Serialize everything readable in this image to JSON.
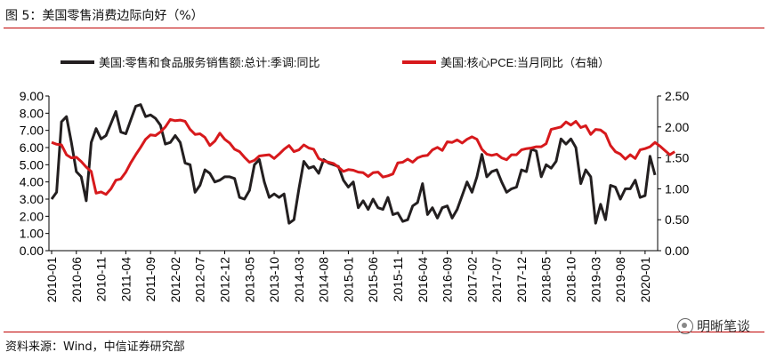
{
  "figure": {
    "title": "图 5：美国零售消费边际向好（%）",
    "source": "资料来源：Wind，中信证券研究部",
    "watermark": "明晰笔谈",
    "watermark_icon": "wechat-icon"
  },
  "chart_data": {
    "type": "line",
    "title": "",
    "xlabel": "",
    "ylabel": "",
    "y_left": {
      "min": 0,
      "max": 9,
      "ticks": [
        "0.00",
        "1.00",
        "2.00",
        "3.00",
        "4.00",
        "5.00",
        "6.00",
        "7.00",
        "8.00",
        "9.00"
      ]
    },
    "y_right": {
      "min": 0,
      "max": 2.5,
      "ticks": [
        "0.00",
        "0.50",
        "1.00",
        "1.50",
        "2.00",
        "2.50"
      ]
    },
    "x_ticks": [
      "2010-01",
      "2010-06",
      "2010-11",
      "2011-04",
      "2011-09",
      "2012-02",
      "2012-07",
      "2012-12",
      "2013-05",
      "2013-10",
      "2014-03",
      "2014-08",
      "2015-01",
      "2015-06",
      "2015-11",
      "2016-04",
      "2016-09",
      "2017-02",
      "2017-07",
      "2017-12",
      "2018-05",
      "2018-10",
      "2019-03",
      "2019-08",
      "2020-01"
    ],
    "legend_position": "top",
    "grid": false,
    "colors": {
      "retail": "#231f20",
      "pce": "#d7191c"
    },
    "series": [
      {
        "name": "美国:零售和食品服务销售额:总计:季调:同比",
        "axis": "left",
        "start": "2010-01",
        "values": [
          3.0,
          3.4,
          7.5,
          7.8,
          6.3,
          4.6,
          4.3,
          2.9,
          6.3,
          7.1,
          6.5,
          6.7,
          7.4,
          8.1,
          6.9,
          6.8,
          7.6,
          8.4,
          8.5,
          7.8,
          7.9,
          7.7,
          7.3,
          6.2,
          6.3,
          6.7,
          6.3,
          5.1,
          5.0,
          3.4,
          3.8,
          4.7,
          4.5,
          4.0,
          4.1,
          4.3,
          4.3,
          4.2,
          3.1,
          3.0,
          3.5,
          5.0,
          5.3,
          4.0,
          3.1,
          3.3,
          3.1,
          3.3,
          1.6,
          1.8,
          3.6,
          5.2,
          4.8,
          4.9,
          4.5,
          5.3,
          5.1,
          5.0,
          4.9,
          4.1,
          3.7,
          4.0,
          2.5,
          2.9,
          2.4,
          3.0,
          2.5,
          2.4,
          3.1,
          2.1,
          2.2,
          1.7,
          1.8,
          2.6,
          2.8,
          3.9,
          2.1,
          2.5,
          1.9,
          2.5,
          2.6,
          1.9,
          2.4,
          3.2,
          4.0,
          3.4,
          4.3,
          5.6,
          4.3,
          4.6,
          4.7,
          4.0,
          3.4,
          3.6,
          3.7,
          4.7,
          4.6,
          5.9,
          5.8,
          4.3,
          5.0,
          4.8,
          5.2,
          6.5,
          6.2,
          6.5,
          6.0,
          3.9,
          4.7,
          4.3,
          1.6,
          2.7,
          1.8,
          3.8,
          3.7,
          3.0,
          3.6,
          3.6,
          4.1,
          3.1,
          3.2,
          5.5,
          4.4
        ]
      },
      {
        "name": "美国:核心PCE:当月同比（右轴）",
        "axis": "right",
        "start": "2010-01",
        "values": [
          1.75,
          1.72,
          1.71,
          1.55,
          1.5,
          1.51,
          1.44,
          1.35,
          1.28,
          0.93,
          0.95,
          0.91,
          1.0,
          1.14,
          1.16,
          1.27,
          1.42,
          1.55,
          1.67,
          1.8,
          1.87,
          1.86,
          1.92,
          2.0,
          2.12,
          2.1,
          2.11,
          2.09,
          1.96,
          1.88,
          1.89,
          1.83,
          1.7,
          1.77,
          1.9,
          1.8,
          1.74,
          1.64,
          1.6,
          1.51,
          1.43,
          1.46,
          1.53,
          1.54,
          1.55,
          1.49,
          1.56,
          1.64,
          1.7,
          1.6,
          1.63,
          1.71,
          1.66,
          1.64,
          1.49,
          1.45,
          1.43,
          1.41,
          1.35,
          1.28,
          1.31,
          1.3,
          1.27,
          1.26,
          1.2,
          1.26,
          1.27,
          1.19,
          1.21,
          1.24,
          1.42,
          1.43,
          1.48,
          1.43,
          1.5,
          1.53,
          1.54,
          1.63,
          1.67,
          1.62,
          1.76,
          1.75,
          1.79,
          1.74,
          1.8,
          1.84,
          1.8,
          1.64,
          1.56,
          1.54,
          1.56,
          1.5,
          1.47,
          1.55,
          1.55,
          1.63,
          1.65,
          1.66,
          1.68,
          1.68,
          1.73,
          1.96,
          1.98,
          2.0,
          2.08,
          2.03,
          2.09,
          1.99,
          2.02,
          1.88,
          1.96,
          1.95,
          1.89,
          1.7,
          1.6,
          1.56,
          1.48,
          1.55,
          1.49,
          1.63,
          1.65,
          1.68,
          1.75,
          1.69,
          1.62,
          1.55,
          1.6
        ]
      }
    ]
  }
}
